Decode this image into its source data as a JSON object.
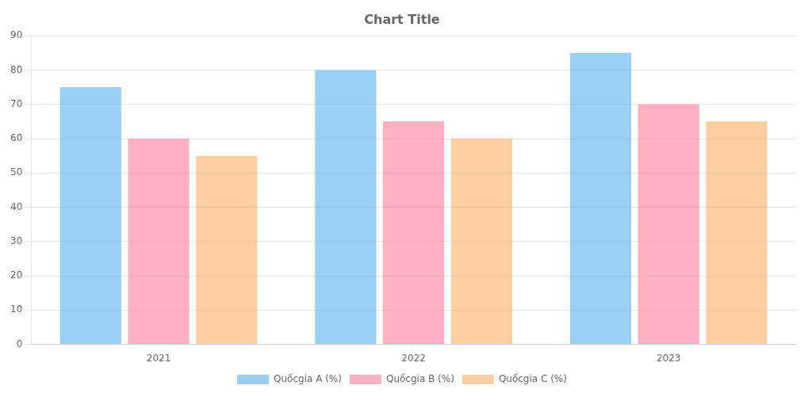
{
  "chart_data": {
    "type": "bar",
    "title": "Chart Title",
    "categories": [
      "2021",
      "2022",
      "2023"
    ],
    "series": [
      {
        "name": "Quốcgia A (%)",
        "values": [
          75,
          80,
          85
        ]
      },
      {
        "name": "Quốcgia B (%)",
        "values": [
          60,
          65,
          70
        ]
      },
      {
        "name": "Quốcgia C (%)",
        "values": [
          55,
          60,
          65
        ]
      }
    ],
    "ylim": [
      0,
      90
    ],
    "yticks": [
      0,
      10,
      20,
      30,
      40,
      50,
      60,
      70,
      80,
      90
    ],
    "grid": true,
    "legend": "bottom"
  }
}
